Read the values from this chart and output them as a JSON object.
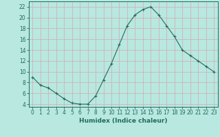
{
  "x": [
    0,
    1,
    2,
    3,
    4,
    5,
    6,
    7,
    8,
    9,
    10,
    11,
    12,
    13,
    14,
    15,
    16,
    17,
    18,
    19,
    20,
    21,
    22,
    23
  ],
  "y": [
    9,
    7.5,
    7,
    6,
    5,
    4.2,
    4,
    4,
    5.5,
    8.5,
    11.5,
    15,
    18.5,
    20.5,
    21.5,
    22,
    20.5,
    18.5,
    16.5,
    14,
    13,
    12,
    11,
    10
  ],
  "line_color": "#1e6b5e",
  "marker": "+",
  "background_color": "#b8e8e0",
  "grid_color": "#c8d8d4",
  "xlabel": "Humidex (Indice chaleur)",
  "xlim": [
    -0.5,
    23.5
  ],
  "ylim": [
    3.5,
    23
  ],
  "yticks": [
    4,
    6,
    8,
    10,
    12,
    14,
    16,
    18,
    20,
    22
  ],
  "xticks": [
    0,
    1,
    2,
    3,
    4,
    5,
    6,
    7,
    8,
    9,
    10,
    11,
    12,
    13,
    14,
    15,
    16,
    17,
    18,
    19,
    20,
    21,
    22,
    23
  ],
  "xlabel_fontsize": 6.5,
  "tick_fontsize": 5.5
}
